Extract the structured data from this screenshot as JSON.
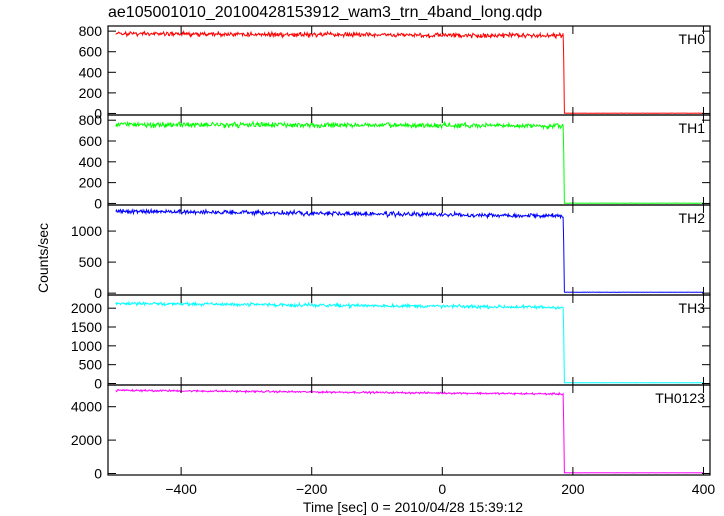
{
  "title": "ae105001010_20100428153912_wam3_trn_4band_long.qdp",
  "ylabel": "Counts/sec",
  "xlabel": "Time [sec] 0 = 2010/04/28 15:39:12",
  "chart_data": [
    {
      "type": "line",
      "series": [
        {
          "name": "TH0",
          "color": "#ff0000"
        }
      ],
      "xlim": [
        -512,
        410
      ],
      "ylim": [
        -15,
        850
      ],
      "yticks": [
        0,
        200,
        400,
        600,
        800
      ],
      "yticklabels": [
        "0",
        "200",
        "400",
        "600",
        "800"
      ],
      "xticks": [
        -400,
        -200,
        0,
        200,
        400
      ],
      "xticklabels": [],
      "grid": false,
      "profile": {
        "x_start": -500,
        "x_drop": 186,
        "x_end": 400,
        "level_start": 775,
        "level_end": 755,
        "noise": 22,
        "level_after": 3,
        "noise_after": 2,
        "spike_at": 186,
        "spike_value": 540
      }
    },
    {
      "type": "line",
      "series": [
        {
          "name": "TH1",
          "color": "#00ff00"
        }
      ],
      "xlim": [
        -512,
        410
      ],
      "ylim": [
        -15,
        850
      ],
      "yticks": [
        0,
        200,
        400,
        600,
        800
      ],
      "yticklabels": [
        "0",
        "200",
        "400",
        "600",
        "800"
      ],
      "xticks": [
        -400,
        -200,
        0,
        200,
        400
      ],
      "xticklabels": [],
      "grid": false,
      "profile": {
        "x_start": -500,
        "x_drop": 186,
        "x_end": 400,
        "level_start": 760,
        "level_end": 745,
        "noise": 24,
        "level_after": 3,
        "noise_after": 2,
        "spike_at": 186,
        "spike_value": 500
      }
    },
    {
      "type": "line",
      "series": [
        {
          "name": "TH2",
          "color": "#0000ff"
        }
      ],
      "xlim": [
        -512,
        410
      ],
      "ylim": [
        -30,
        1420
      ],
      "yticks": [
        0,
        500,
        1000
      ],
      "yticklabels": [
        "0",
        "500",
        "1000"
      ],
      "xticks": [
        -400,
        -200,
        0,
        200,
        400
      ],
      "xticklabels": [],
      "grid": false,
      "profile": {
        "x_start": -500,
        "x_drop": 186,
        "x_end": 400,
        "level_start": 1320,
        "level_end": 1245,
        "noise": 35,
        "level_after": 15,
        "noise_after": 5,
        "spike_at": 186,
        "spike_value": 800
      }
    },
    {
      "type": "line",
      "series": [
        {
          "name": "TH3",
          "color": "#00ffff"
        }
      ],
      "xlim": [
        -512,
        410
      ],
      "ylim": [
        -40,
        2350
      ],
      "yticks": [
        0,
        500,
        1000,
        1500,
        2000
      ],
      "yticklabels": [
        "0",
        "500",
        "1000",
        "1500",
        "2000"
      ],
      "xticks": [
        -400,
        -200,
        0,
        200,
        400
      ],
      "xticklabels": [],
      "grid": false,
      "profile": {
        "x_start": -500,
        "x_drop": 186,
        "x_end": 400,
        "level_start": 2130,
        "level_end": 2020,
        "noise": 45,
        "level_after": 20,
        "noise_after": 8,
        "spike_at": 186,
        "spike_value": 1400
      }
    },
    {
      "type": "line",
      "series": [
        {
          "name": "TH0123",
          "color": "#ff00ff"
        }
      ],
      "xlim": [
        -512,
        410
      ],
      "ylim": [
        -90,
        5300
      ],
      "yticks": [
        0,
        2000,
        4000
      ],
      "yticklabels": [
        "0",
        "2000",
        "4000"
      ],
      "xticks": [
        -400,
        -200,
        0,
        200,
        400
      ],
      "xticklabels": [
        "−400",
        "−200",
        "0",
        "200",
        "400"
      ],
      "grid": false,
      "profile": {
        "x_start": -500,
        "x_drop": 186,
        "x_end": 400,
        "level_start": 4980,
        "level_end": 4760,
        "noise": 55,
        "level_after": 40,
        "noise_after": 10,
        "spike_at": 186,
        "spike_value": 3000
      }
    }
  ]
}
